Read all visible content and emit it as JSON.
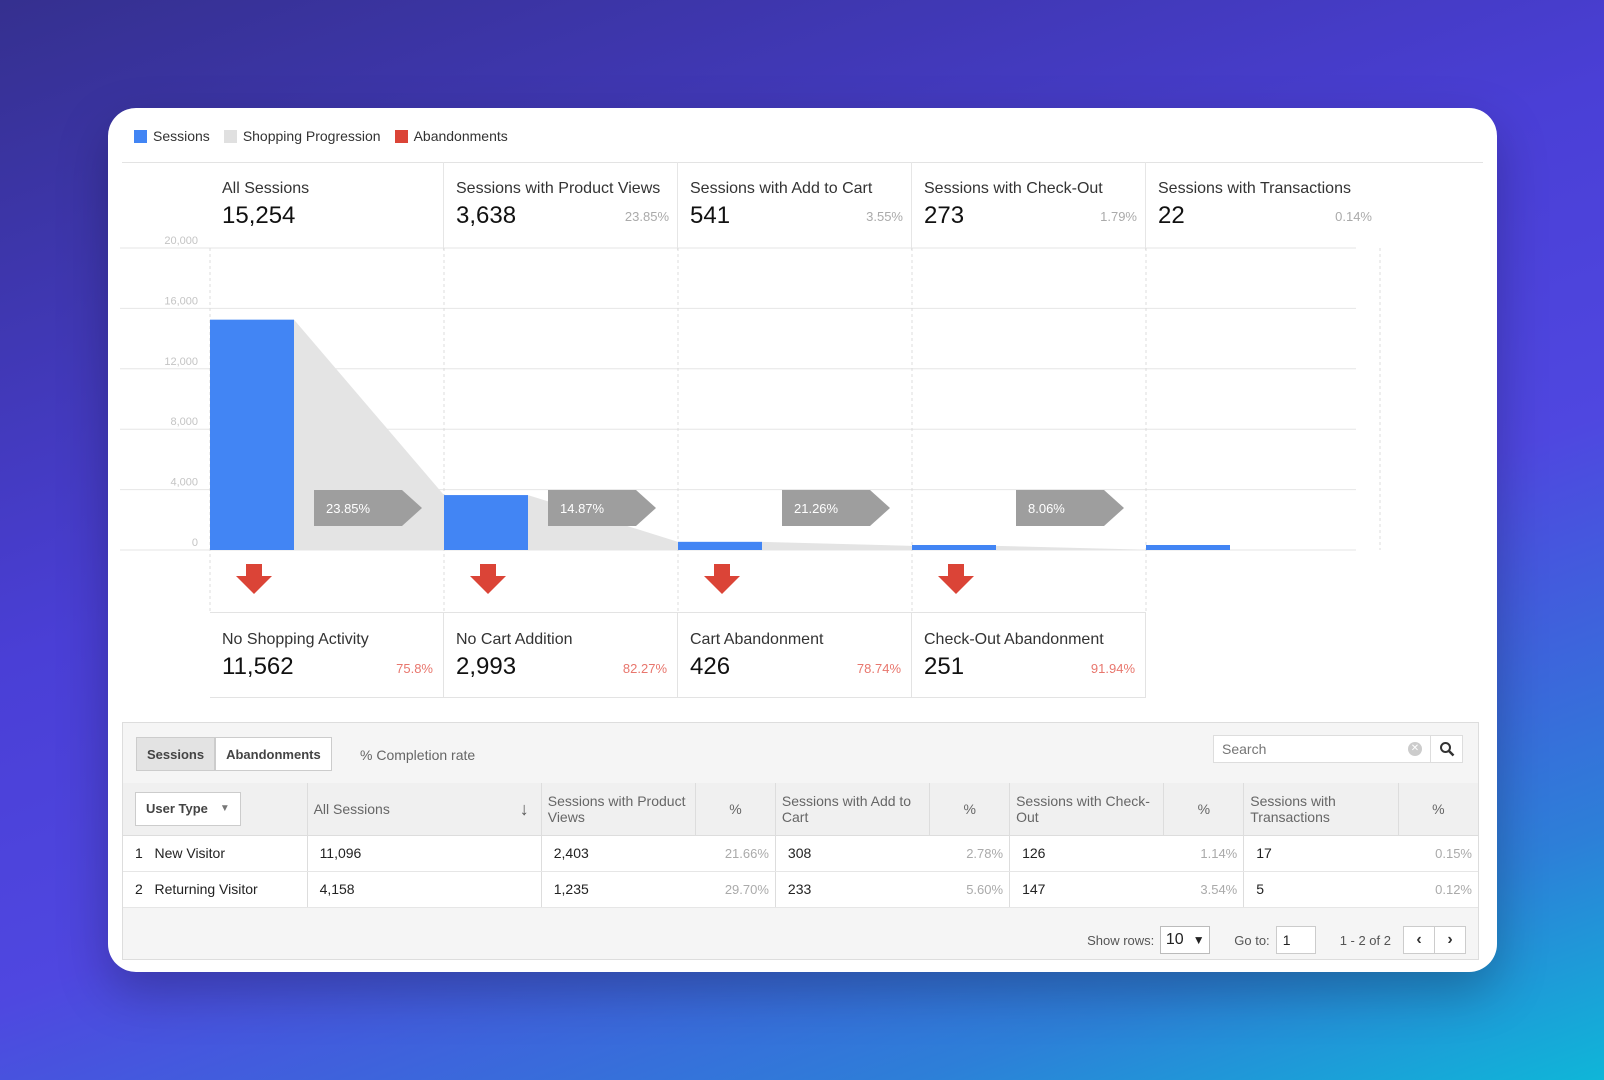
{
  "legend": [
    {
      "label": "Sessions",
      "color": "#4285f4"
    },
    {
      "label": "Shopping Progression",
      "color": "#e0e0e0"
    },
    {
      "label": "Abandonments",
      "color": "#db4437"
    }
  ],
  "stages": [
    {
      "label": "All Sessions",
      "value": "15,254",
      "pct": ""
    },
    {
      "label": "Sessions with Product Views",
      "value": "3,638",
      "pct": "23.85%"
    },
    {
      "label": "Sessions with Add to Cart",
      "value": "541",
      "pct": "3.55%"
    },
    {
      "label": "Sessions with Check-Out",
      "value": "273",
      "pct": "1.79%"
    },
    {
      "label": "Sessions with Transactions",
      "value": "22",
      "pct": "0.14%"
    }
  ],
  "abandonments": [
    {
      "label": "No Shopping Activity",
      "value": "11,562",
      "pct": "75.8%"
    },
    {
      "label": "No Cart Addition",
      "value": "2,993",
      "pct": "82.27%"
    },
    {
      "label": "Cart Abandonment",
      "value": "426",
      "pct": "78.74%"
    },
    {
      "label": "Check-Out Abandonment",
      "value": "251",
      "pct": "91.94%"
    }
  ],
  "chart_data": {
    "type": "bar",
    "categories": [
      "All Sessions",
      "Sessions with Product Views",
      "Sessions with Add to Cart",
      "Sessions with Check-Out",
      "Sessions with Transactions"
    ],
    "values": [
      15254,
      3638,
      541,
      273,
      22
    ],
    "ylim": [
      0,
      20000
    ],
    "yticks": [
      "20,000",
      "16,000",
      "12,000",
      "8,000",
      "4,000",
      "0"
    ],
    "progression": [
      "23.85%",
      "14.87%",
      "21.26%",
      "8.06%"
    ],
    "colors": {
      "bar": "#4285f4",
      "progression": "#e4e4e4",
      "arrow": "#db4437",
      "badge": "#9e9e9e"
    }
  },
  "table": {
    "tabs": [
      "Sessions",
      "Abandonments"
    ],
    "completion_label": "% Completion rate",
    "search_placeholder": "Search",
    "user_type_label": "User Type",
    "headers": {
      "all_sessions": "All Sessions",
      "product_views": "Sessions with Product Views",
      "add_to_cart": "Sessions with Add to Cart",
      "check_out": "Sessions with Check-Out",
      "transactions": "Sessions with Transactions",
      "pct": "%"
    },
    "rows": [
      {
        "idx": "1",
        "type": "New Visitor",
        "all": "11,096",
        "pv": "2,403",
        "pv_pct": "21.66%",
        "atc": "308",
        "atc_pct": "2.78%",
        "co": "126",
        "co_pct": "1.14%",
        "tr": "17",
        "tr_pct": "0.15%"
      },
      {
        "idx": "2",
        "type": "Returning Visitor",
        "all": "4,158",
        "pv": "1,235",
        "pv_pct": "29.70%",
        "atc": "233",
        "atc_pct": "5.60%",
        "co": "147",
        "co_pct": "3.54%",
        "tr": "5",
        "tr_pct": "0.12%"
      }
    ],
    "footer": {
      "show_rows_label": "Show rows:",
      "show_rows_value": "10",
      "goto_label": "Go to:",
      "goto_value": "1",
      "range": "1 - 2 of 2"
    }
  }
}
